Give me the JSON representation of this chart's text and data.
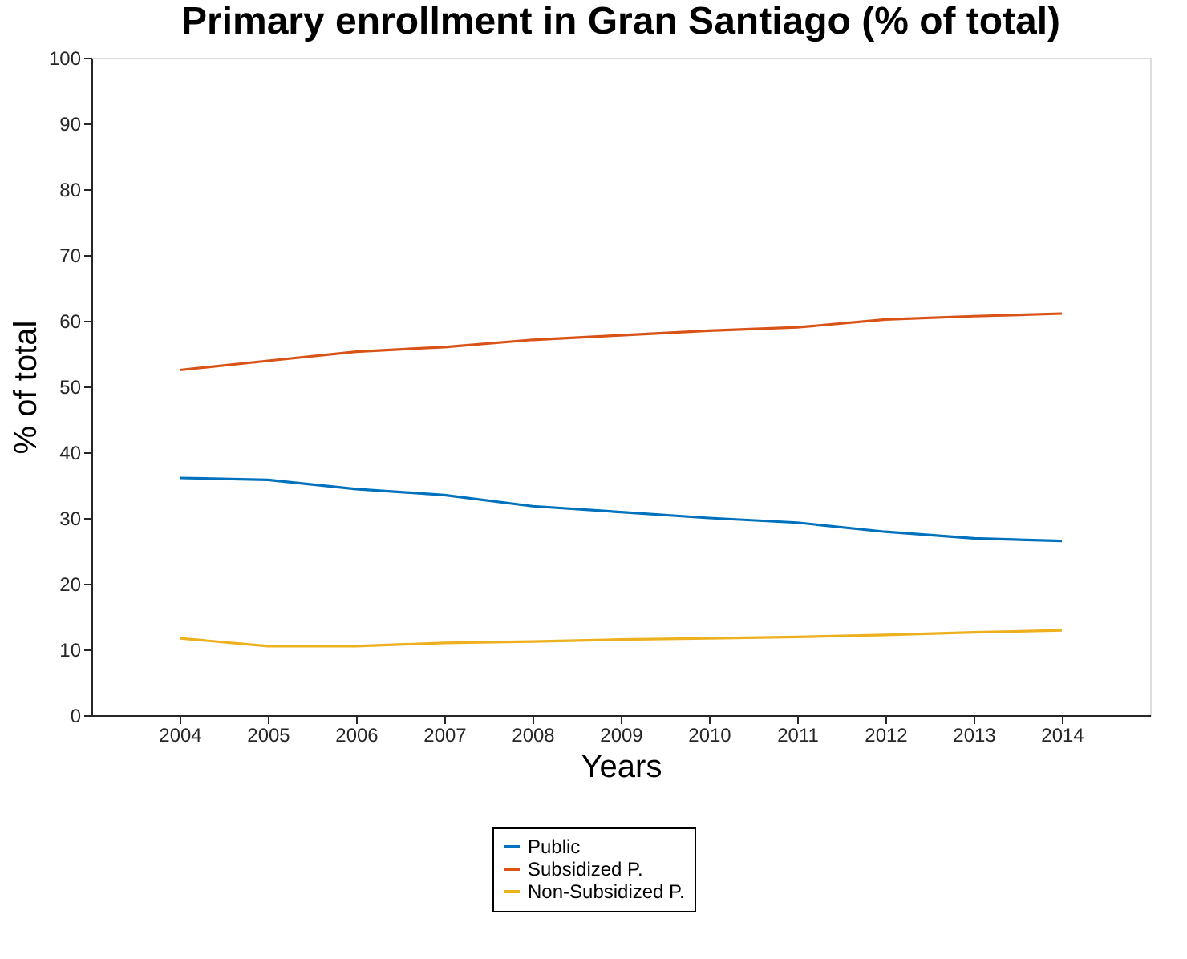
{
  "chart_data": {
    "type": "line",
    "title": "Primary enrollment in Gran Santiago (% of total)",
    "xlabel": "Years",
    "ylabel": "% of total",
    "x": [
      2004,
      2005,
      2006,
      2007,
      2008,
      2009,
      2010,
      2011,
      2012,
      2013,
      2014
    ],
    "series": [
      {
        "name": "Public",
        "color": "#0072bd",
        "values": [
          36.1,
          35.8,
          34.4,
          33.5,
          31.8,
          30.9,
          30.0,
          29.3,
          27.9,
          26.9,
          26.5
        ]
      },
      {
        "name": "Subsidized P.",
        "color": "#d95319",
        "values": [
          52.5,
          53.9,
          55.3,
          56.0,
          57.1,
          57.8,
          58.5,
          59.0,
          60.2,
          60.7,
          61.1
        ]
      },
      {
        "name": "Non-Subsidized P.",
        "color": "#edb120",
        "values": [
          11.7,
          10.5,
          10.5,
          11.0,
          11.2,
          11.5,
          11.7,
          11.9,
          12.2,
          12.6,
          12.9
        ]
      }
    ],
    "xlim": [
      2003,
      2015
    ],
    "xticks": [
      2004,
      2005,
      2006,
      2007,
      2008,
      2009,
      2010,
      2011,
      2012,
      2013,
      2014
    ],
    "ylim": [
      0,
      100
    ],
    "yticks": [
      0,
      10,
      20,
      30,
      40,
      50,
      60,
      70,
      80,
      90,
      100
    ],
    "grid": false,
    "legend": "bottom",
    "marker": "none",
    "line_style": "solid"
  }
}
